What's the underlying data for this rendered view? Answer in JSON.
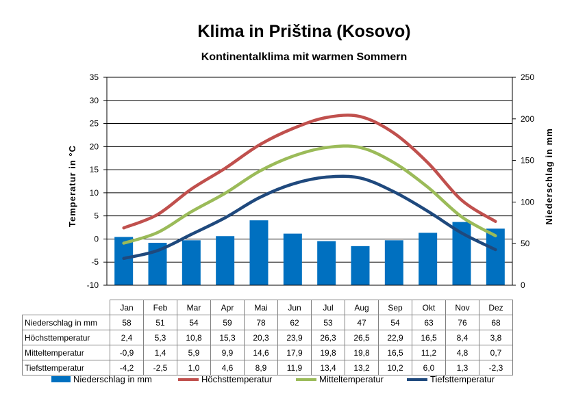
{
  "title": "Klima in Priština (Kosovo)",
  "subtitle": "Kontinentalklima mit warmen Sommern",
  "chart_data": {
    "type": "bar",
    "categories": [
      "Jan",
      "Feb",
      "Mar",
      "Apr",
      "Mai",
      "Jun",
      "Jul",
      "Aug",
      "Sep",
      "Okt",
      "Nov",
      "Dez"
    ],
    "y_left": {
      "label": "Temperatur in °C",
      "min": -10,
      "max": 35,
      "ticks": [
        35,
        30,
        25,
        20,
        15,
        10,
        5,
        0,
        -5,
        -10
      ]
    },
    "y_right": {
      "label": "Niederschlag in mm",
      "min": 0,
      "max": 250,
      "ticks": [
        250,
        200,
        150,
        100,
        50,
        0
      ]
    },
    "series": [
      {
        "name": "Niederschlag in mm",
        "kind": "bar",
        "axis": "right",
        "color": "#0070C0",
        "values": [
          58,
          51,
          54,
          59,
          78,
          62,
          53,
          47,
          54,
          63,
          76,
          68
        ],
        "labels": [
          "58",
          "51",
          "54",
          "59",
          "78",
          "62",
          "53",
          "47",
          "54",
          "63",
          "76",
          "68"
        ]
      },
      {
        "name": "Höchsttemperatur",
        "kind": "line",
        "axis": "left",
        "color": "#C0504D",
        "values": [
          2.4,
          5.3,
          10.8,
          15.3,
          20.3,
          23.9,
          26.3,
          26.5,
          22.9,
          16.5,
          8.4,
          3.8
        ],
        "labels": [
          "2,4",
          "5,3",
          "10,8",
          "15,3",
          "20,3",
          "23,9",
          "26,3",
          "26,5",
          "22,9",
          "16,5",
          "8,4",
          "3,8"
        ]
      },
      {
        "name": "Mitteltemperatur",
        "kind": "line",
        "axis": "left",
        "color": "#9BBB59",
        "values": [
          -0.9,
          1.4,
          5.9,
          9.9,
          14.6,
          17.9,
          19.8,
          19.8,
          16.5,
          11.2,
          4.8,
          0.7
        ],
        "labels": [
          "-0,9",
          "1,4",
          "5,9",
          "9,9",
          "14,6",
          "17,9",
          "19,8",
          "19,8",
          "16,5",
          "11,2",
          "4,8",
          "0,7"
        ]
      },
      {
        "name": "Tiefsttemperatur",
        "kind": "line",
        "axis": "left",
        "color": "#1F497D",
        "values": [
          -4.2,
          -2.5,
          1.0,
          4.6,
          8.9,
          11.9,
          13.4,
          13.2,
          10.2,
          6.0,
          1.3,
          -2.3
        ],
        "labels": [
          "-4,2",
          "-2,5",
          "1,0",
          "4,6",
          "8,9",
          "11,9",
          "13,4",
          "13,2",
          "10,2",
          "6,0",
          "1,3",
          "-2,3"
        ]
      }
    ],
    "grid": "horizontal",
    "legend": "bottom"
  }
}
